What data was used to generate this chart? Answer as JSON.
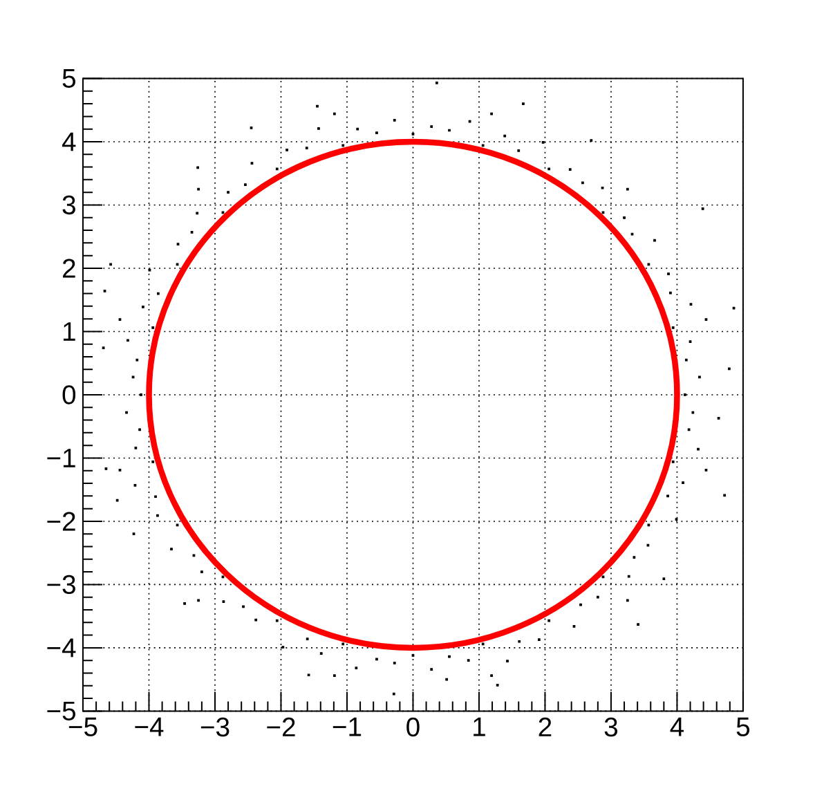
{
  "chart_data": {
    "type": "scatter",
    "marker": "square",
    "xlim": [
      -5,
      5
    ],
    "ylim": [
      -5,
      5
    ],
    "xticks": [
      {
        "value": -5,
        "label": "−5"
      },
      {
        "value": -4,
        "label": "−4"
      },
      {
        "value": -3,
        "label": "−3"
      },
      {
        "value": -2,
        "label": "−2"
      },
      {
        "value": -1,
        "label": "−1"
      },
      0,
      1,
      2,
      3,
      4,
      5
    ],
    "yticks": [
      {
        "value": -5,
        "label": "−5"
      },
      {
        "value": -4,
        "label": "−4"
      },
      {
        "value": -3,
        "label": "−3"
      },
      {
        "value": -2,
        "label": "−2"
      },
      {
        "value": -1,
        "label": "−1"
      },
      0,
      1,
      2,
      3,
      4,
      5
    ],
    "grid": true,
    "series": [
      {
        "color": "#000000",
        "x": [
          4.12,
          4.14,
          3.94,
          3.9,
          3.57,
          3.32,
          2.88,
          2.57,
          2.06,
          1.6,
          1.06,
          0.55,
          0,
          -0.55,
          -1.06,
          -1.61,
          -2.06,
          -2.54,
          -2.88,
          -3.35,
          -3.57,
          -3.86,
          -3.94,
          -4.18,
          -4.12,
          -4.14,
          -3.94,
          -3.9,
          -3.57,
          -3.32,
          -2.88,
          -2.57,
          -2.06,
          -1.6,
          -1.06,
          -0.55,
          0,
          0.55,
          1.06,
          1.61,
          2.06,
          2.54,
          2.88,
          3.35,
          3.57,
          3.86,
          3.94,
          4.18,
          4.34,
          4.2,
          4.21,
          3.87,
          3.66,
          3.2,
          2.87,
          2.38,
          1.97,
          1.39,
          0.86,
          0.28,
          -0.28,
          -0.84,
          -1.43,
          -1.91,
          -2.44,
          -2.8,
          -3.27,
          -3.56,
          -3.99,
          -4.09,
          -4.32,
          -4.24,
          -4.34,
          -4.2,
          -4.21,
          -3.87,
          -3.66,
          -3.2,
          -2.87,
          -2.38,
          -1.97,
          -1.39,
          -0.86,
          -0.28,
          0.28,
          0.84,
          1.43,
          1.91,
          2.44,
          2.8,
          3.27,
          3.56,
          3.99,
          4.09,
          4.32,
          4.24,
          -4.67,
          -4.58,
          -2.45,
          -3.26,
          -1.45,
          -4.69,
          0.36,
          1.67,
          4.39,
          4.86,
          4.79,
          2.7,
          -4.23,
          -3.46,
          -0.29,
          -4.65,
          -1.58,
          -4.48,
          4.72,
          3.41,
          1.28,
          4.63,
          3.8,
          0.51,
          4.44,
          3.25,
          1.19,
          -1.19,
          -3.25,
          -4.44,
          -4.44,
          -3.25,
          -1.19,
          1.19,
          3.25,
          4.44
        ],
        "values": [
          0,
          0.55,
          1.06,
          1.61,
          2.06,
          2.54,
          2.88,
          3.35,
          3.57,
          3.86,
          3.94,
          4.18,
          4.12,
          4.14,
          3.94,
          3.9,
          3.57,
          3.32,
          2.88,
          2.57,
          2.06,
          1.6,
          1.06,
          0.55,
          0,
          -0.55,
          -1.06,
          -1.61,
          -2.06,
          -2.54,
          -2.88,
          -3.35,
          -3.57,
          -3.86,
          -3.94,
          -4.18,
          -4.12,
          -4.14,
          -3.94,
          -3.9,
          -3.57,
          -3.32,
          -2.88,
          -2.57,
          -2.06,
          -1.6,
          -1.06,
          -0.55,
          0.28,
          0.84,
          1.43,
          1.91,
          2.44,
          2.8,
          3.27,
          3.56,
          3.99,
          4.09,
          4.32,
          4.24,
          4.34,
          4.2,
          4.21,
          3.87,
          3.66,
          3.2,
          2.87,
          2.38,
          1.97,
          1.39,
          0.86,
          0.28,
          -0.28,
          -0.84,
          -1.43,
          -1.91,
          -2.44,
          -2.8,
          -3.27,
          -3.56,
          -3.99,
          -4.09,
          -4.32,
          -4.24,
          -4.34,
          -4.2,
          -4.21,
          -3.87,
          -3.66,
          -3.2,
          -2.87,
          -2.38,
          -1.97,
          -1.39,
          -0.86,
          -0.28,
          1.64,
          2.06,
          4.22,
          3.59,
          4.56,
          0.74,
          4.93,
          4.6,
          2.94,
          1.37,
          0.41,
          4.02,
          -2.2,
          -3.3,
          -4.73,
          -1.17,
          -4.43,
          -1.67,
          -1.59,
          -3.63,
          -4.59,
          -0.37,
          -2.91,
          -4.5,
          1.19,
          3.25,
          4.44,
          4.44,
          3.25,
          1.19,
          -1.19,
          -3.25,
          -4.44,
          -4.44,
          -3.25,
          -1.19
        ]
      }
    ]
  }
}
